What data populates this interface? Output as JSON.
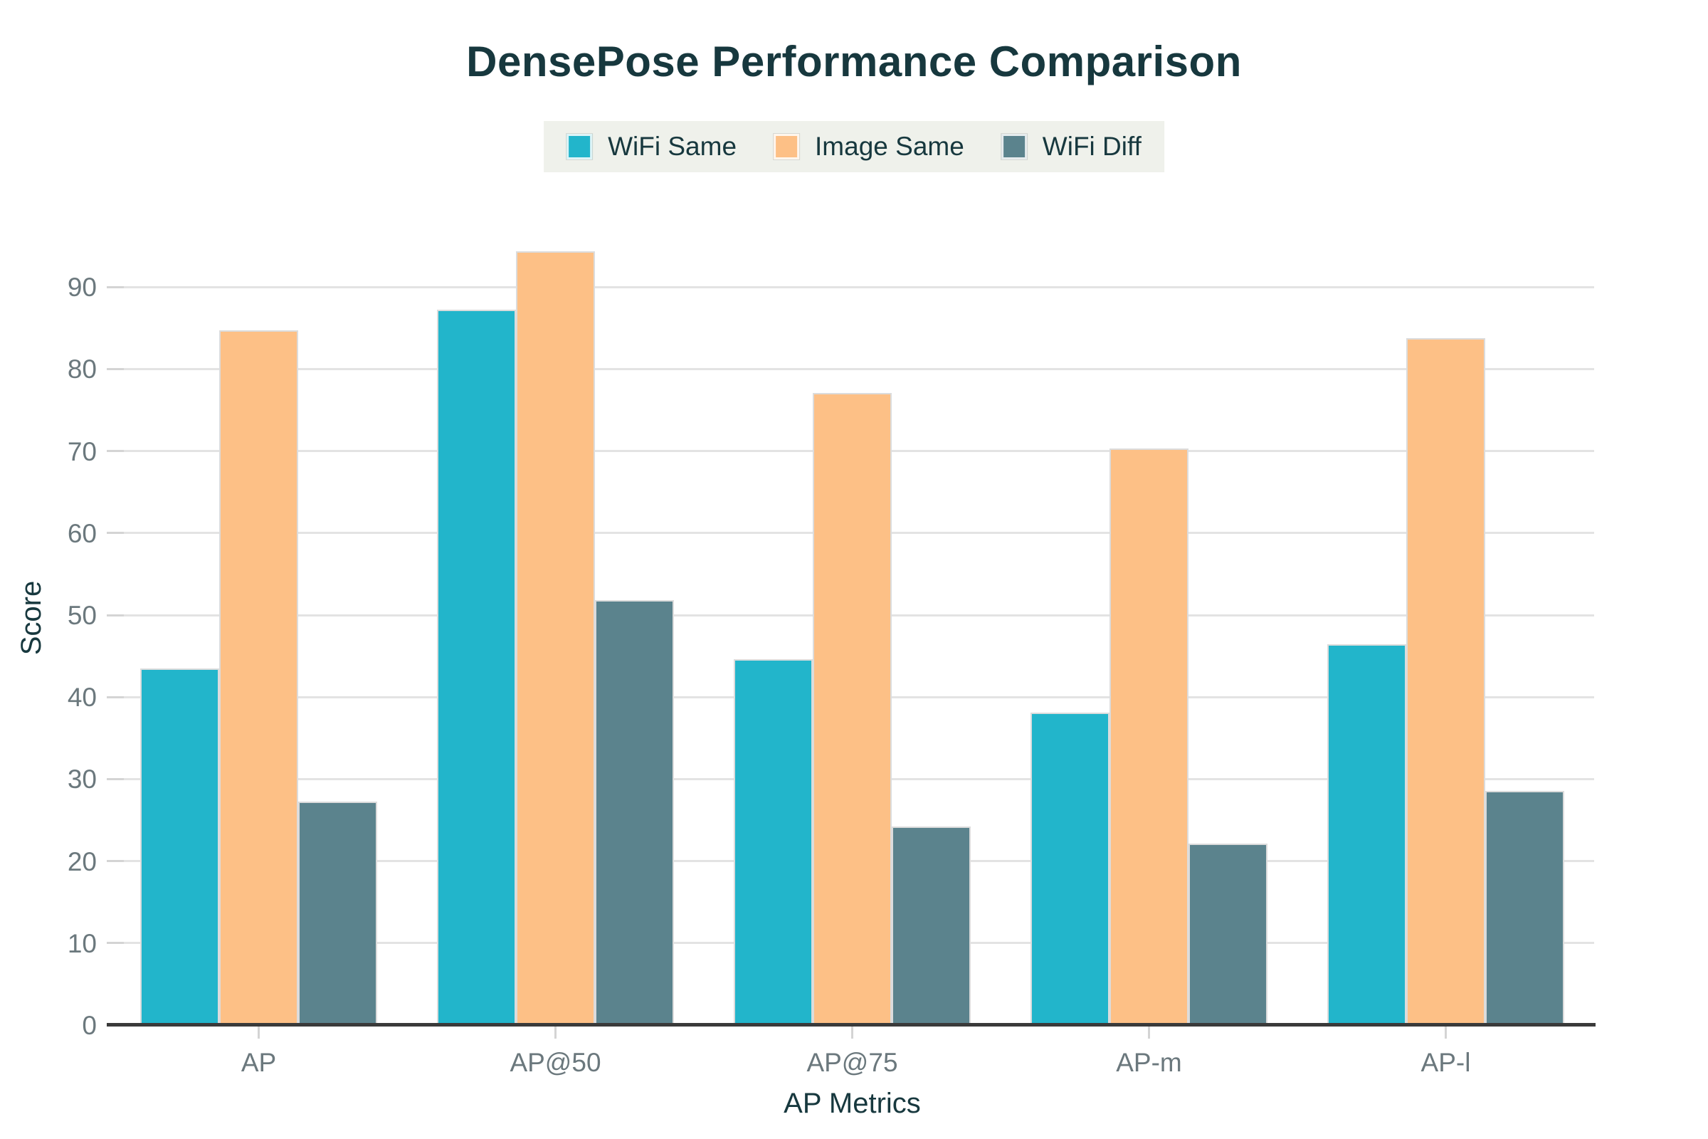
{
  "chart_data": {
    "type": "bar",
    "title": "DensePose Performance Comparison",
    "xlabel": "AP Metrics",
    "ylabel": "Score",
    "categories": [
      "AP",
      "AP@50",
      "AP@75",
      "AP-m",
      "AP-l"
    ],
    "series": [
      {
        "name": "WiFi Same",
        "color": "#22b5cb",
        "values": [
          43.5,
          87.2,
          44.6,
          38.1,
          46.4
        ]
      },
      {
        "name": "Image Same",
        "color": "#fdc086",
        "values": [
          84.7,
          94.4,
          77.1,
          70.3,
          83.8
        ]
      },
      {
        "name": "WiFi Diff",
        "color": "#5b838d",
        "values": [
          27.3,
          51.8,
          24.2,
          22.1,
          28.6
        ]
      }
    ],
    "ylim": [
      0,
      100
    ],
    "yticks": [
      0,
      10,
      20,
      30,
      40,
      50,
      60,
      70,
      80,
      90
    ],
    "grid": true,
    "legend_position": "top-center"
  },
  "colors": {
    "title_text": "#17383e",
    "tick_text": "#6b787d",
    "legend_background": "#eff1eb",
    "gridline": "#e3e3e3",
    "axis_line": "#3a3a3a",
    "series_teal": "#22b5cb",
    "series_orange": "#fdc086",
    "series_slate": "#5b838d"
  }
}
